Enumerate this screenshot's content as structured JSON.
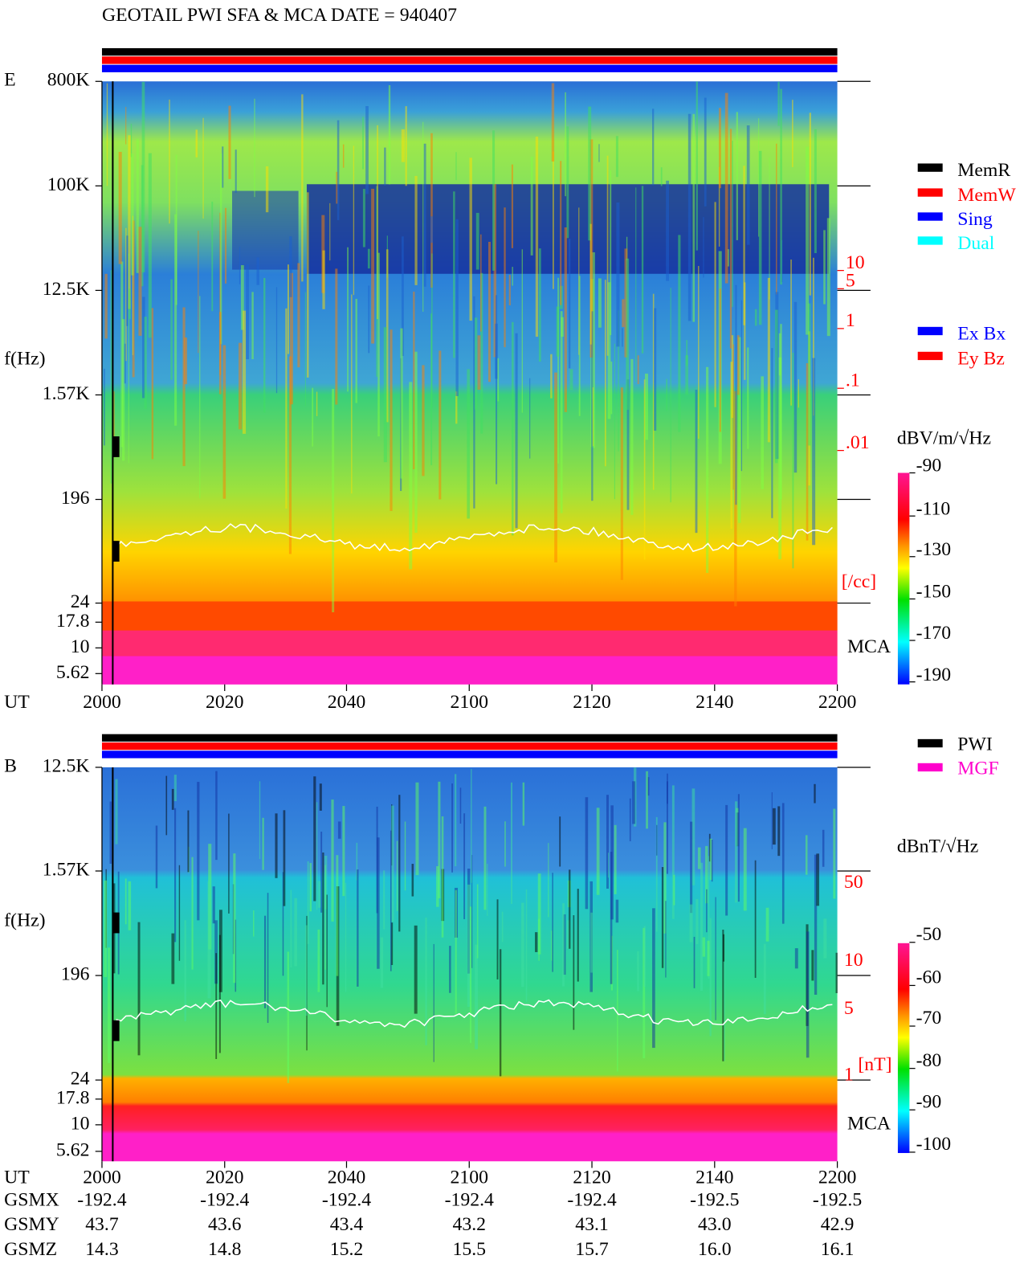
{
  "header": {
    "title": "GEOTAIL  PWI SFA & MCA   DATE = 940407"
  },
  "panel_e": {
    "label": "E",
    "y_axis_label": "f(Hz)",
    "freq_ticks": [
      "800K",
      "100K",
      "12.5K",
      "1.57K",
      "196",
      "24",
      "17.8",
      "10",
      "5.62"
    ],
    "x_axis_label": "UT",
    "time_ticks": [
      2000,
      2020,
      2040,
      2100,
      2120,
      2140,
      2200
    ],
    "density_ticks": [
      "10",
      "5",
      "1",
      ".1",
      ".01"
    ],
    "density_unit": "[/cc]",
    "mca_label": "MCA",
    "mode_legend": [
      "MemR",
      "MemW",
      "Sing",
      "Dual"
    ],
    "component_legend": [
      "Ex Bx",
      "Ey Bz"
    ],
    "colorbar_title": "dBV/m/√Hz",
    "colorbar_ticks": [
      -90,
      -110,
      -130,
      -150,
      -170,
      -190
    ]
  },
  "panel_b": {
    "label": "B",
    "y_axis_label": "f(Hz)",
    "freq_ticks": [
      "12.5K",
      "1.57K",
      "196",
      "24",
      "17.8",
      "10",
      "5.62"
    ],
    "field_ticks": [
      "50",
      "10",
      "5",
      "1"
    ],
    "field_unit": "[nT]",
    "mca_label": "MCA",
    "instrument_legend": [
      "PWI",
      "MGF"
    ],
    "colorbar_title": "dBnT/√Hz",
    "colorbar_ticks": [
      -50,
      -60,
      -70,
      -80,
      -90,
      -100
    ]
  },
  "orbit": {
    "x_axis_label": "UT",
    "time_ticks": [
      2000,
      2020,
      2040,
      2100,
      2120,
      2140,
      2200
    ],
    "rows": [
      {
        "label": "GSMX",
        "values": [
          "-192.4",
          "-192.4",
          "-192.4",
          "-192.4",
          "-192.4",
          "-192.5",
          "-192.5"
        ]
      },
      {
        "label": "GSMY",
        "values": [
          "43.7",
          "43.6",
          "43.4",
          "43.2",
          "43.1",
          "43.0",
          "42.9"
        ]
      },
      {
        "label": "GSMZ",
        "values": [
          "14.3",
          "14.8",
          "15.2",
          "15.5",
          "15.7",
          "16.0",
          "16.1"
        ]
      }
    ]
  }
}
